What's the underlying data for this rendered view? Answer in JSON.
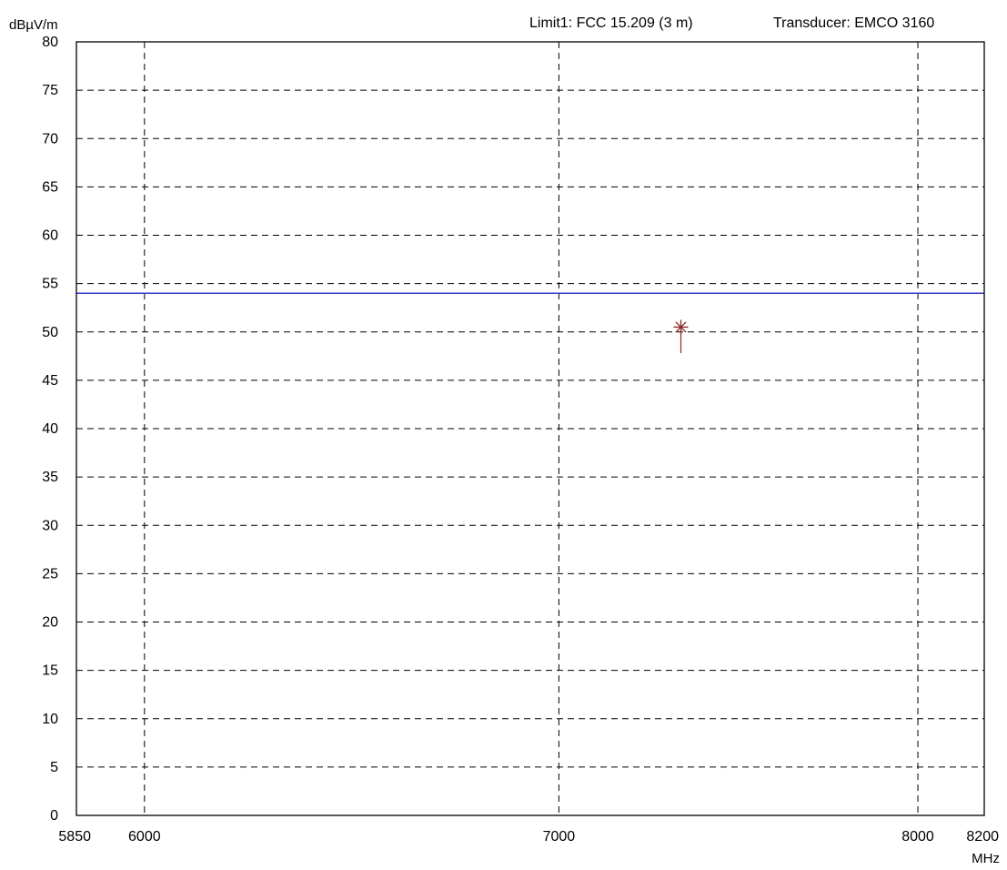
{
  "header": {
    "ylabel": "dBµV/m",
    "limit_label": "Limit1: FCC 15.209 (3 m)",
    "transducer_label": "Transducer: EMCO 3160"
  },
  "chart_data": {
    "type": "line",
    "title": "",
    "xlabel": "MHz",
    "ylabel": "dBµV/m",
    "xlim": [
      5850,
      8200
    ],
    "ylim": [
      0,
      80
    ],
    "x_scale": "log",
    "grid": true,
    "x_ticks": [
      {
        "value": 5850,
        "label": "5850",
        "gridline": false
      },
      {
        "value": 6000,
        "label": "6000",
        "gridline": true
      },
      {
        "value": 7000,
        "label": "7000",
        "gridline": true
      },
      {
        "value": 8000,
        "label": "8000",
        "gridline": true
      },
      {
        "value": 8200,
        "label": "8200",
        "gridline": false
      }
    ],
    "y_ticks": [
      {
        "value": 0,
        "label": "0"
      },
      {
        "value": 5,
        "label": "5"
      },
      {
        "value": 10,
        "label": "10"
      },
      {
        "value": 15,
        "label": "15"
      },
      {
        "value": 20,
        "label": "20"
      },
      {
        "value": 25,
        "label": "25"
      },
      {
        "value": 30,
        "label": "30"
      },
      {
        "value": 35,
        "label": "35"
      },
      {
        "value": 40,
        "label": "40"
      },
      {
        "value": 45,
        "label": "45"
      },
      {
        "value": 50,
        "label": "50"
      },
      {
        "value": 55,
        "label": "55"
      },
      {
        "value": 60,
        "label": "60"
      },
      {
        "value": 65,
        "label": "65"
      },
      {
        "value": 70,
        "label": "70"
      },
      {
        "value": 75,
        "label": "75"
      },
      {
        "value": 80,
        "label": "80"
      }
    ],
    "series": [
      {
        "kind": "limit-line",
        "color": "#3a3acd",
        "x": [
          5850,
          8200
        ],
        "y": [
          54,
          54
        ]
      },
      {
        "kind": "peak-marker",
        "color": "#8b2b2b",
        "marker": "asterisk",
        "x": [
          7325
        ],
        "y": [
          50.5
        ],
        "stem_bottom": [
          47.8
        ]
      }
    ]
  }
}
